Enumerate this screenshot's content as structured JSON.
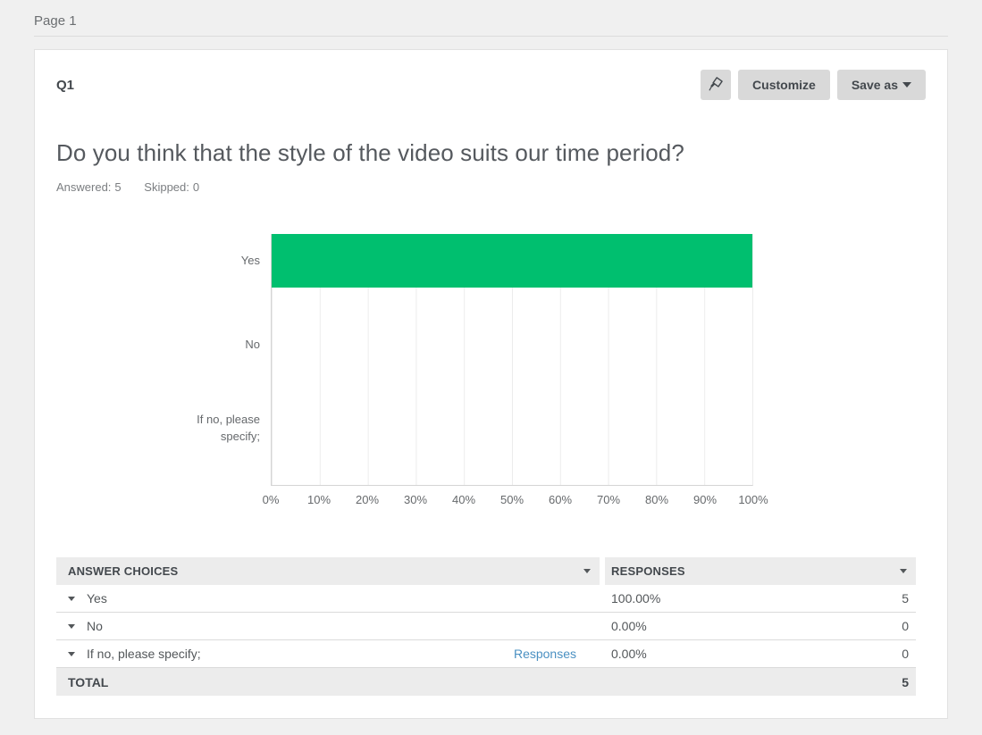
{
  "page": {
    "label": "Page 1"
  },
  "question_panel": {
    "question_number": "Q1",
    "toolbar": {
      "pin_icon": "pushpin-icon",
      "customize_label": "Customize",
      "save_as_label": "Save as"
    },
    "question_title": "Do you think that the style of the video suits our time period?",
    "stats": {
      "answered_label": "Answered:",
      "answered_value": "5",
      "skipped_label": "Skipped:",
      "skipped_value": "0"
    }
  },
  "chart_data": {
    "type": "bar",
    "orientation": "horizontal",
    "title": "",
    "categories": [
      "Yes",
      "No",
      "If no, please specify;"
    ],
    "values": [
      100,
      0,
      0
    ],
    "value_format": "percent",
    "x_ticks": [
      "0%",
      "10%",
      "20%",
      "30%",
      "40%",
      "50%",
      "60%",
      "70%",
      "80%",
      "90%",
      "100%"
    ],
    "xlim": [
      0,
      100
    ],
    "grid": true,
    "legend": false,
    "bar_color": "#00BF6F"
  },
  "table": {
    "headers": {
      "choices": "ANSWER CHOICES",
      "responses": "RESPONSES"
    },
    "rows": [
      {
        "choice": "Yes",
        "link": "",
        "percent": "100.00%",
        "count": "5"
      },
      {
        "choice": "No",
        "link": "",
        "percent": "0.00%",
        "count": "0"
      },
      {
        "choice": "If no, please specify;",
        "link": "Responses",
        "percent": "0.00%",
        "count": "0"
      }
    ],
    "total_label": "TOTAL",
    "total_count": "5"
  },
  "colors": {
    "accent_green": "#00BF6F",
    "link_blue": "#4A90C2",
    "header_bg": "#ececec",
    "button_bg": "#d9d9d9",
    "page_bg": "#f0f0f0"
  }
}
